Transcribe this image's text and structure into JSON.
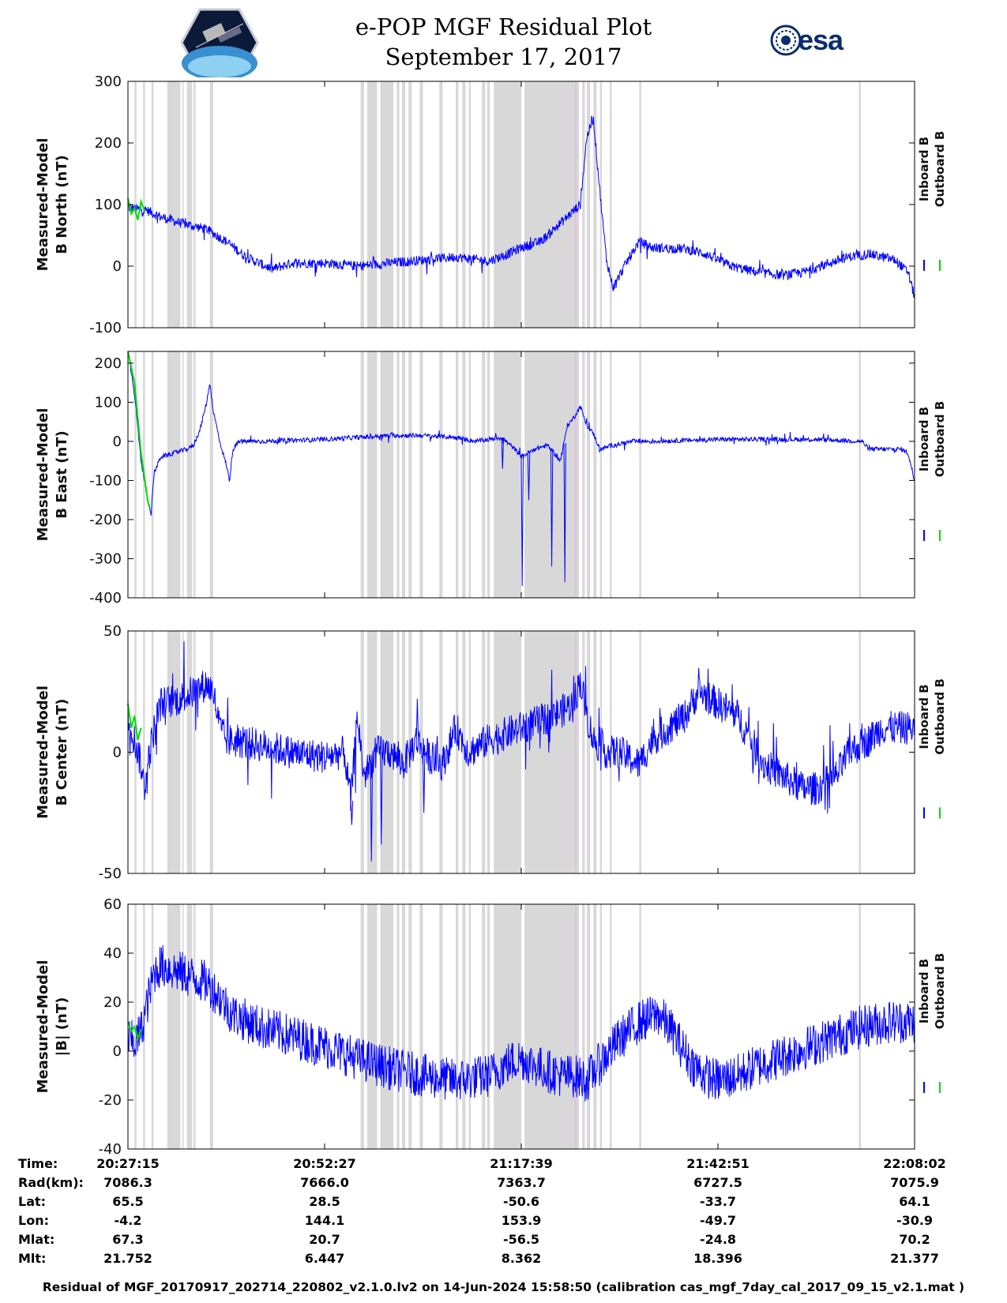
{
  "header": {
    "title_line1": "e-POP MGF Residual Plot",
    "title_line2": "September 17, 2017",
    "logo_left_name": "cassiope-mission-patch",
    "logo_right_text": "esa"
  },
  "colors": {
    "inboard": "#0000ff",
    "outboard": "#00dd00",
    "gap_shading": "#d8d8d8",
    "marker_line": "#e8b8e8",
    "axes": "#000000"
  },
  "chart_data": [
    {
      "type": "line",
      "ylabel_line1": "Measured-Model",
      "ylabel_line2": "B North (nT)",
      "ylim": [
        -100,
        300
      ],
      "yticks": [
        -100,
        0,
        100,
        200,
        300
      ],
      "xtick_labels": [
        "20:27:15",
        "20:52:27",
        "21:17:39",
        "21:42:51",
        "22:08:02"
      ],
      "legend": [
        "Inboard B",
        "Outboard B"
      ],
      "grid": false,
      "baseline_points": [
        [
          0,
          95
        ],
        [
          3,
          90
        ],
        [
          5,
          80
        ],
        [
          8,
          70
        ],
        [
          12,
          60
        ],
        [
          15,
          40
        ],
        [
          18,
          15
        ],
        [
          22,
          -5
        ],
        [
          25,
          5
        ],
        [
          30,
          5
        ],
        [
          35,
          0
        ],
        [
          40,
          5
        ],
        [
          45,
          10
        ],
        [
          50,
          15
        ],
        [
          55,
          8
        ],
        [
          58,
          20
        ],
        [
          60,
          30
        ],
        [
          63,
          40
        ],
        [
          65,
          60
        ],
        [
          67,
          80
        ],
        [
          69,
          100
        ],
        [
          70,
          210
        ],
        [
          71,
          240
        ],
        [
          72,
          120
        ],
        [
          73,
          10
        ],
        [
          74,
          -35
        ],
        [
          76,
          5
        ],
        [
          78,
          40
        ],
        [
          80,
          30
        ],
        [
          85,
          28
        ],
        [
          88,
          20
        ],
        [
          92,
          0
        ],
        [
          96,
          -10
        ],
        [
          100,
          -15
        ],
        [
          103,
          -10
        ],
        [
          107,
          5
        ],
        [
          110,
          15
        ],
        [
          113,
          20
        ],
        [
          117,
          10
        ],
        [
          119,
          -10
        ],
        [
          120,
          -50
        ]
      ],
      "noise": 8,
      "outboard_segment": [
        [
          0,
          110
        ],
        [
          0.5,
          85
        ],
        [
          1,
          95
        ],
        [
          1.5,
          75
        ],
        [
          2,
          105
        ],
        [
          2.5,
          90
        ]
      ]
    },
    {
      "type": "line",
      "ylabel_line1": "Measured-Model",
      "ylabel_line2": "B East (nT)",
      "ylim": [
        -400,
        230
      ],
      "yticks": [
        -400,
        -300,
        -200,
        -100,
        0,
        100,
        200
      ],
      "xtick_labels": [
        "20:27:15",
        "20:52:27",
        "21:17:39",
        "21:42:51",
        "22:08:02"
      ],
      "legend": [
        "Inboard B",
        "Outboard B"
      ],
      "grid": false,
      "baseline_points": [
        [
          0,
          230
        ],
        [
          1,
          120
        ],
        [
          2,
          -50
        ],
        [
          3,
          -150
        ],
        [
          3.5,
          -190
        ],
        [
          4,
          -80
        ],
        [
          5,
          -40
        ],
        [
          7,
          -30
        ],
        [
          9,
          -20
        ],
        [
          10,
          -10
        ],
        [
          11,
          30
        ],
        [
          12,
          100
        ],
        [
          12.5,
          150
        ],
        [
          13,
          80
        ],
        [
          14,
          0
        ],
        [
          15,
          -60
        ],
        [
          15.5,
          -100
        ],
        [
          16,
          -20
        ],
        [
          17,
          0
        ],
        [
          20,
          0
        ],
        [
          30,
          5
        ],
        [
          35,
          10
        ],
        [
          40,
          15
        ],
        [
          45,
          15
        ],
        [
          50,
          10
        ],
        [
          53,
          0
        ],
        [
          55,
          5
        ],
        [
          57,
          10
        ],
        [
          59,
          -20
        ],
        [
          60,
          -40
        ],
        [
          62,
          -20
        ],
        [
          64,
          -10
        ],
        [
          65,
          -30
        ],
        [
          66,
          -50
        ],
        [
          67,
          40
        ],
        [
          68,
          60
        ],
        [
          69,
          90
        ],
        [
          70,
          40
        ],
        [
          71,
          20
        ],
        [
          72,
          -20
        ],
        [
          74,
          -10
        ],
        [
          77,
          0
        ],
        [
          80,
          0
        ],
        [
          90,
          5
        ],
        [
          100,
          5
        ],
        [
          105,
          5
        ],
        [
          112,
          0
        ],
        [
          113,
          -20
        ],
        [
          118,
          -20
        ],
        [
          119,
          -30
        ],
        [
          120,
          -100
        ]
      ],
      "noise": 6,
      "spikes": [
        [
          60,
          -370
        ],
        [
          64.5,
          -320
        ],
        [
          66.5,
          -360
        ],
        [
          57,
          -70
        ],
        [
          61,
          -150
        ]
      ],
      "outboard_segment": [
        [
          0,
          230
        ],
        [
          1,
          150
        ],
        [
          2,
          -30
        ],
        [
          3,
          -150
        ],
        [
          3.3,
          -170
        ]
      ]
    },
    {
      "type": "line",
      "ylabel_line1": "Measured-Model",
      "ylabel_line2": "B Center (nT)",
      "ylim": [
        -50,
        50
      ],
      "yticks": [
        -50,
        0,
        50
      ],
      "xtick_labels": [
        "20:27:15",
        "20:52:27",
        "21:17:39",
        "21:42:51",
        "22:08:02"
      ],
      "legend": [
        "Inboard B",
        "Outboard B"
      ],
      "grid": false,
      "baseline_points": [
        [
          0,
          15
        ],
        [
          1,
          5
        ],
        [
          2,
          -5
        ],
        [
          2.5,
          -15
        ],
        [
          3,
          -5
        ],
        [
          4,
          10
        ],
        [
          5,
          20
        ],
        [
          8,
          22
        ],
        [
          10,
          25
        ],
        [
          12,
          28
        ],
        [
          13,
          25
        ],
        [
          14,
          10
        ],
        [
          15,
          5
        ],
        [
          20,
          3
        ],
        [
          25,
          0
        ],
        [
          30,
          -2
        ],
        [
          33,
          0
        ],
        [
          34,
          -20
        ],
        [
          35,
          15
        ],
        [
          36,
          -10
        ],
        [
          37,
          -5
        ],
        [
          38,
          0
        ],
        [
          40,
          0
        ],
        [
          42,
          -5
        ],
        [
          44,
          5
        ],
        [
          46,
          -2
        ],
        [
          48,
          -5
        ],
        [
          50,
          10
        ],
        [
          52,
          0
        ],
        [
          55,
          5
        ],
        [
          60,
          10
        ],
        [
          65,
          15
        ],
        [
          68,
          20
        ],
        [
          69,
          30
        ],
        [
          70,
          15
        ],
        [
          71,
          5
        ],
        [
          73,
          0
        ],
        [
          75,
          0
        ],
        [
          78,
          -5
        ],
        [
          80,
          5
        ],
        [
          85,
          15
        ],
        [
          87,
          25
        ],
        [
          90,
          20
        ],
        [
          93,
          15
        ],
        [
          95,
          5
        ],
        [
          97,
          -5
        ],
        [
          100,
          -10
        ],
        [
          103,
          -15
        ],
        [
          105,
          -15
        ],
        [
          108,
          -10
        ],
        [
          110,
          0
        ],
        [
          113,
          5
        ],
        [
          115,
          10
        ],
        [
          118,
          10
        ],
        [
          120,
          10
        ]
      ],
      "noise": 7,
      "spikes": [
        [
          37,
          -45
        ],
        [
          38.5,
          -38
        ],
        [
          34,
          -30
        ],
        [
          45,
          -25
        ],
        [
          44,
          22
        ]
      ],
      "outboard_segment": [
        [
          0,
          20
        ],
        [
          0.5,
          10
        ],
        [
          1,
          15
        ],
        [
          1.5,
          5
        ],
        [
          2,
          10
        ]
      ]
    },
    {
      "type": "line",
      "ylabel_line1": "Measured-Model",
      "ylabel_line2": "|B| (nT)",
      "ylim": [
        -40,
        60
      ],
      "yticks": [
        -40,
        -20,
        0,
        20,
        40,
        60
      ],
      "xtick_labels": [
        "20:27:15",
        "20:52:27",
        "21:17:39",
        "21:42:51",
        "22:08:02"
      ],
      "legend": [
        "Inboard B",
        "Outboard B"
      ],
      "grid": false,
      "baseline_points": [
        [
          0,
          5
        ],
        [
          1,
          3
        ],
        [
          2,
          8
        ],
        [
          3,
          20
        ],
        [
          4,
          32
        ],
        [
          5,
          35
        ],
        [
          7,
          33
        ],
        [
          10,
          30
        ],
        [
          12,
          28
        ],
        [
          14,
          22
        ],
        [
          16,
          15
        ],
        [
          20,
          10
        ],
        [
          25,
          6
        ],
        [
          30,
          2
        ],
        [
          35,
          -3
        ],
        [
          40,
          -7
        ],
        [
          45,
          -10
        ],
        [
          50,
          -12
        ],
        [
          55,
          -10
        ],
        [
          58,
          -5
        ],
        [
          60,
          -3
        ],
        [
          63,
          -7
        ],
        [
          66,
          -10
        ],
        [
          68,
          -10
        ],
        [
          70,
          -12
        ],
        [
          72,
          -5
        ],
        [
          75,
          5
        ],
        [
          78,
          12
        ],
        [
          81,
          15
        ],
        [
          83,
          8
        ],
        [
          86,
          -5
        ],
        [
          88,
          -10
        ],
        [
          90,
          -12
        ],
        [
          93,
          -10
        ],
        [
          96,
          -6
        ],
        [
          100,
          -2
        ],
        [
          104,
          2
        ],
        [
          108,
          6
        ],
        [
          112,
          10
        ],
        [
          116,
          12
        ],
        [
          120,
          12
        ]
      ],
      "noise": 5,
      "band": 9,
      "outboard_segment": [
        [
          0,
          12
        ],
        [
          0.5,
          8
        ],
        [
          1,
          10
        ],
        [
          1.5,
          5
        ],
        [
          2,
          9
        ]
      ]
    }
  ],
  "footer": {
    "row_labels": [
      "Time:",
      "Rad(km):",
      "Lat:",
      "Lon:",
      "Mlat:",
      "Mlt:"
    ],
    "columns": [
      [
        "20:27:15",
        "7086.3",
        "65.5",
        "-4.2",
        "67.3",
        "21.752"
      ],
      [
        "20:52:27",
        "7666.0",
        "28.5",
        "144.1",
        "20.7",
        "6.447"
      ],
      [
        "21:17:39",
        "7363.7",
        "-50.6",
        "153.9",
        "-56.5",
        "8.362"
      ],
      [
        "21:42:51",
        "6727.5",
        "-33.7",
        "-49.7",
        "-24.8",
        "18.396"
      ],
      [
        "22:08:02",
        "7075.9",
        "64.1",
        "-30.9",
        "70.2",
        "21.377"
      ]
    ],
    "file_note": "Residual of MGF_20170917_202714_220802_v2.1.0.lv2 on 14-Jun-2024 15:58:50 (calibration cas_mgf_7day_cal_2017_09_15_v2.1.mat )"
  },
  "gap_intervals": [
    [
      1,
      1.3
    ],
    [
      2.3,
      2.6
    ],
    [
      3.6,
      3.9
    ],
    [
      6,
      8
    ],
    [
      8.3,
      8.5
    ],
    [
      9,
      9.8
    ],
    [
      10,
      10.3
    ],
    [
      12.5,
      13
    ],
    [
      35.5,
      36
    ],
    [
      36.5,
      38
    ],
    [
      38.5,
      40.5
    ],
    [
      41,
      41.4
    ],
    [
      41.8,
      42.3
    ],
    [
      42.8,
      43.3
    ],
    [
      44.5,
      45
    ],
    [
      47.5,
      48
    ],
    [
      50,
      50.4
    ],
    [
      51,
      51.5
    ],
    [
      52,
      52.3
    ],
    [
      54,
      54.5
    ],
    [
      54.8,
      55.2
    ],
    [
      55.8,
      60
    ],
    [
      60.5,
      68.8
    ],
    [
      69.3,
      69.7
    ],
    [
      70,
      70.5
    ],
    [
      71,
      71.5
    ],
    [
      72,
      72.3
    ],
    [
      73.5,
      73.8
    ],
    [
      78,
      78.3
    ],
    [
      111.5,
      111.8
    ]
  ],
  "marker_x": 68.3
}
